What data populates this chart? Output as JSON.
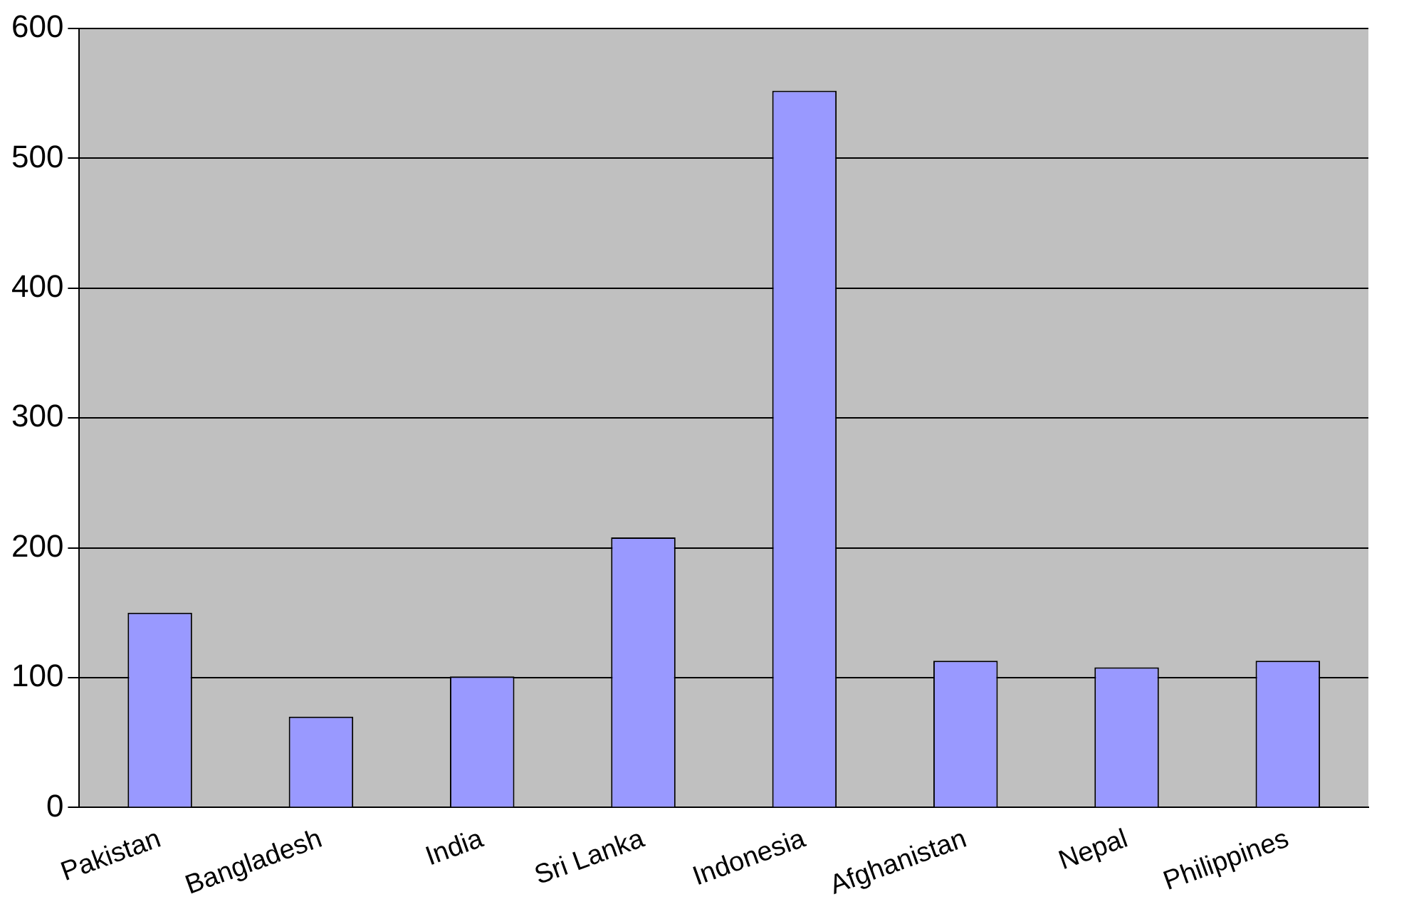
{
  "chart_data": {
    "type": "bar",
    "categories": [
      "Pakistan",
      "Bangladesh",
      "India",
      "Sri Lanka",
      "Indonesia",
      "Afghanistan",
      "Nepal",
      "Philippines"
    ],
    "values": [
      150,
      70,
      101,
      208,
      552,
      113,
      108,
      113
    ],
    "color": "#9999ff",
    "ylim": [
      0,
      600
    ],
    "yticks": [
      0,
      100,
      200,
      300,
      400,
      500,
      600
    ],
    "grid": "y"
  }
}
